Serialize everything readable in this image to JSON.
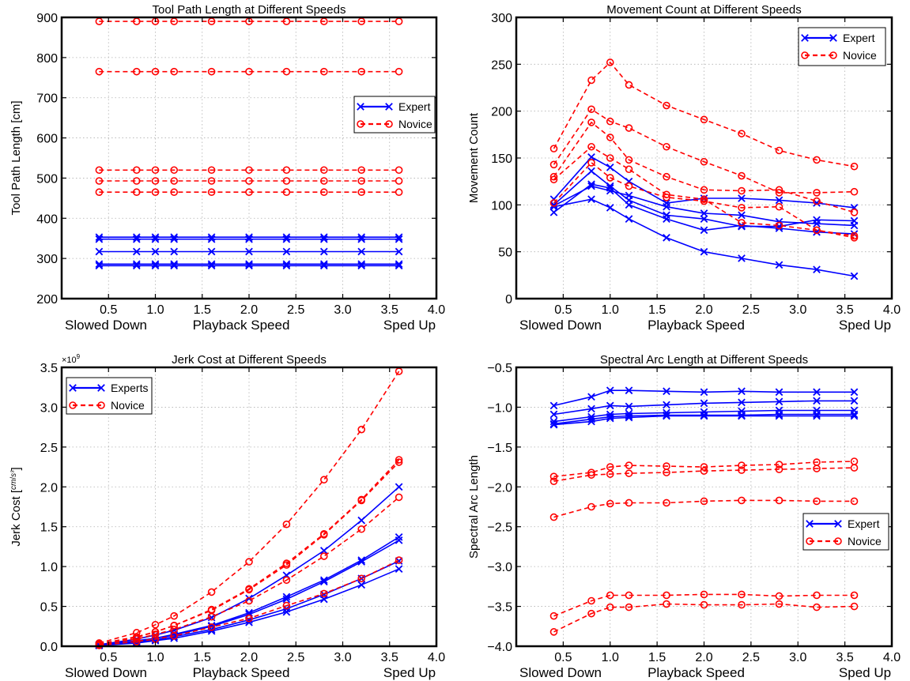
{
  "colors": {
    "expert": "#0000ff",
    "novice": "#ff0000",
    "grid": "#b0b0b0",
    "axis": "#000000",
    "background": "#ffffff"
  },
  "chart_data": [
    {
      "type": "line",
      "title": "Tool Path Length at Different Speeds",
      "xlabel": "Playback Speed",
      "x_left_label": "Slowed Down",
      "x_right_label": "Sped Up",
      "ylabel": "Tool Path Length [cm]",
      "xlim": [
        0,
        4
      ],
      "ylim": [
        200,
        900
      ],
      "xticks": [
        0.5,
        1.0,
        1.5,
        2.0,
        2.5,
        3.0,
        3.5,
        4.0
      ],
      "xtick_labels": [
        "0.5",
        "1.0",
        "1.5",
        "2.0",
        "2.5",
        "3.0",
        "3.5",
        "4.0"
      ],
      "yticks": [
        200,
        300,
        400,
        500,
        600,
        700,
        800,
        900
      ],
      "ytick_labels": [
        "200",
        "300",
        "400",
        "500",
        "600",
        "700",
        "800",
        "900"
      ],
      "grid": true,
      "legend_position": "center-right",
      "legend": [
        {
          "label": "Expert",
          "group": "expert"
        },
        {
          "label": "Novice",
          "group": "novice"
        }
      ],
      "x": [
        0.4,
        0.8,
        1.0,
        1.2,
        1.6,
        2.0,
        2.4,
        2.8,
        3.2,
        3.6
      ],
      "series": [
        {
          "group": "expert",
          "values": [
            353,
            353,
            353,
            353,
            353,
            353,
            353,
            353,
            353,
            353
          ]
        },
        {
          "group": "expert",
          "values": [
            348,
            348,
            348,
            348,
            348,
            348,
            348,
            348,
            348,
            348
          ]
        },
        {
          "group": "expert",
          "values": [
            317,
            317,
            317,
            317,
            317,
            317,
            317,
            317,
            317,
            317
          ]
        },
        {
          "group": "expert",
          "values": [
            286,
            286,
            286,
            286,
            286,
            286,
            286,
            286,
            286,
            286
          ]
        },
        {
          "group": "expert",
          "values": [
            282,
            282,
            282,
            282,
            282,
            282,
            282,
            282,
            282,
            282
          ]
        },
        {
          "group": "novice",
          "values": [
            890,
            890,
            890,
            890,
            890,
            890,
            890,
            890,
            890,
            890
          ]
        },
        {
          "group": "novice",
          "values": [
            765,
            765,
            765,
            765,
            765,
            765,
            765,
            765,
            765,
            765
          ]
        },
        {
          "group": "novice",
          "values": [
            520,
            520,
            520,
            520,
            520,
            520,
            520,
            520,
            520,
            520
          ]
        },
        {
          "group": "novice",
          "values": [
            493,
            493,
            493,
            493,
            493,
            493,
            493,
            493,
            493,
            493
          ]
        },
        {
          "group": "novice",
          "values": [
            465,
            465,
            465,
            465,
            465,
            465,
            465,
            465,
            465,
            465
          ]
        }
      ]
    },
    {
      "type": "line",
      "title": "Movement Count at Different Speeds",
      "xlabel": "Playback Speed",
      "x_left_label": "Slowed Down",
      "x_right_label": "Sped Up",
      "ylabel": "Movement Count",
      "xlim": [
        0,
        4
      ],
      "ylim": [
        0,
        300
      ],
      "xticks": [
        0.5,
        1.0,
        1.5,
        2.0,
        2.5,
        3.0,
        3.5,
        4.0
      ],
      "xtick_labels": [
        "0.5",
        "1.0",
        "1.5",
        "2.0",
        "2.5",
        "3.0",
        "3.5",
        "4.0"
      ],
      "yticks": [
        0,
        50,
        100,
        150,
        200,
        250,
        300
      ],
      "ytick_labels": [
        "0",
        "50",
        "100",
        "150",
        "200",
        "250",
        "300"
      ],
      "grid": true,
      "legend_position": "top-right",
      "legend": [
        {
          "label": "Expert",
          "group": "expert"
        },
        {
          "label": "Novice",
          "group": "novice"
        }
      ],
      "x": [
        0.4,
        0.8,
        1.0,
        1.2,
        1.6,
        2.0,
        2.4,
        2.8,
        3.2,
        3.6
      ],
      "series": [
        {
          "group": "expert",
          "values": [
            106,
            151,
            140,
            125,
            102,
            107,
            107,
            105,
            102,
            97
          ]
        },
        {
          "group": "expert",
          "values": [
            100,
            136,
            120,
            105,
            89,
            85,
            77,
            77,
            84,
            83
          ]
        },
        {
          "group": "expert",
          "values": [
            92,
            122,
            118,
            100,
            85,
            73,
            78,
            75,
            71,
            69
          ]
        },
        {
          "group": "expert",
          "values": [
            98,
            106,
            97,
            85,
            65,
            50,
            43,
            36,
            31,
            24
          ]
        },
        {
          "group": "expert",
          "values": [
            99,
            120,
            115,
            110,
            98,
            91,
            89,
            82,
            80,
            78
          ]
        },
        {
          "group": "novice",
          "values": [
            160,
            233,
            252,
            228,
            206,
            191,
            176,
            158,
            148,
            141
          ]
        },
        {
          "group": "novice",
          "values": [
            143,
            202,
            189,
            182,
            162,
            146,
            131,
            113,
            113,
            114
          ]
        },
        {
          "group": "novice",
          "values": [
            130,
            188,
            172,
            148,
            130,
            116,
            115,
            116,
            104,
            92
          ]
        },
        {
          "group": "novice",
          "values": [
            127,
            162,
            150,
            138,
            111,
            106,
            81,
            78,
            73,
            67
          ]
        },
        {
          "group": "novice",
          "values": [
            102,
            145,
            129,
            120,
            108,
            104,
            97,
            98,
            73,
            65
          ]
        }
      ]
    },
    {
      "type": "line",
      "title": "Jerk Cost at Different Speeds",
      "xlabel": "Playback Speed",
      "x_left_label": "Slowed Down",
      "x_right_label": "Sped Up",
      "ylabel_text": "Jerk Cost [",
      "ylabel_fraction_num": "cm",
      "ylabel_fraction_den": "s³",
      "ylabel_close": "]",
      "y_multiplier": "×10",
      "y_multiplier_exp": "9",
      "xlim": [
        0,
        4
      ],
      "ylim": [
        0,
        3.5
      ],
      "xticks": [
        0.5,
        1.0,
        1.5,
        2.0,
        2.5,
        3.0,
        3.5,
        4.0
      ],
      "xtick_labels": [
        "0.5",
        "1.0",
        "1.5",
        "2.0",
        "2.5",
        "3.0",
        "3.5",
        "4.0"
      ],
      "yticks": [
        0,
        0.5,
        1.0,
        1.5,
        2.0,
        2.5,
        3.0,
        3.5
      ],
      "ytick_labels": [
        "0.0",
        "0.5",
        "1.0",
        "1.5",
        "2.0",
        "2.5",
        "3.0",
        "3.5"
      ],
      "grid": true,
      "legend_position": "top-left",
      "legend": [
        {
          "label": "Experts",
          "group": "expert"
        },
        {
          "label": "Novice",
          "group": "novice"
        }
      ],
      "x": [
        0.4,
        0.8,
        1.0,
        1.2,
        1.6,
        2.0,
        2.4,
        2.8,
        3.2,
        3.6
      ],
      "series": [
        {
          "group": "expert",
          "values": [
            0.02,
            0.09,
            0.14,
            0.2,
            0.36,
            0.6,
            0.89,
            1.2,
            1.58,
            2.0
          ]
        },
        {
          "group": "expert",
          "values": [
            0.01,
            0.07,
            0.1,
            0.15,
            0.26,
            0.42,
            0.62,
            0.83,
            1.08,
            1.37
          ]
        },
        {
          "group": "expert",
          "values": [
            0.01,
            0.06,
            0.1,
            0.14,
            0.25,
            0.4,
            0.59,
            0.81,
            1.06,
            1.33
          ]
        },
        {
          "group": "expert",
          "values": [
            0.01,
            0.05,
            0.08,
            0.12,
            0.21,
            0.33,
            0.47,
            0.65,
            0.85,
            1.07
          ]
        },
        {
          "group": "expert",
          "values": [
            0.01,
            0.04,
            0.07,
            0.1,
            0.19,
            0.3,
            0.43,
            0.59,
            0.77,
            0.97
          ]
        },
        {
          "group": "novice",
          "values": [
            0.04,
            0.17,
            0.27,
            0.38,
            0.68,
            1.06,
            1.53,
            2.09,
            2.72,
            3.45
          ]
        },
        {
          "group": "novice",
          "values": [
            0.03,
            0.12,
            0.18,
            0.26,
            0.46,
            0.72,
            1.04,
            1.41,
            1.84,
            2.34
          ]
        },
        {
          "group": "novice",
          "values": [
            0.03,
            0.11,
            0.18,
            0.26,
            0.45,
            0.71,
            1.02,
            1.4,
            1.83,
            2.31
          ]
        },
        {
          "group": "novice",
          "values": [
            0.02,
            0.09,
            0.15,
            0.21,
            0.37,
            0.57,
            0.83,
            1.13,
            1.47,
            1.87
          ]
        },
        {
          "group": "novice",
          "values": [
            0.01,
            0.06,
            0.09,
            0.13,
            0.24,
            0.35,
            0.51,
            0.66,
            0.85,
            1.08
          ]
        }
      ]
    },
    {
      "type": "line",
      "title": "Spectral Arc Length at Different Speeds",
      "xlabel": "Playback Speed",
      "x_left_label": "Slowed Down",
      "x_right_label": "Sped Up",
      "ylabel": "Spectral Arc Length",
      "xlim": [
        0,
        4
      ],
      "ylim": [
        -4.0,
        -0.5
      ],
      "xticks": [
        0.5,
        1.0,
        1.5,
        2.0,
        2.5,
        3.0,
        3.5,
        4.0
      ],
      "xtick_labels": [
        "0.5",
        "1.0",
        "1.5",
        "2.0",
        "2.5",
        "3.0",
        "3.5",
        "4.0"
      ],
      "yticks": [
        -4.0,
        -3.5,
        -3.0,
        -2.5,
        -2.0,
        -1.5,
        -1.0,
        -0.5
      ],
      "ytick_labels": [
        "−4.0",
        "−3.5",
        "−3.0",
        "−2.5",
        "−2.0",
        "−1.5",
        "−1.0",
        "−0.5"
      ],
      "grid": true,
      "legend_position": "center-right",
      "legend": [
        {
          "label": "Expert",
          "group": "expert"
        },
        {
          "label": "Novice",
          "group": "novice"
        }
      ],
      "x": [
        0.4,
        0.8,
        1.0,
        1.2,
        1.6,
        2.0,
        2.4,
        2.8,
        3.2,
        3.6
      ],
      "series": [
        {
          "group": "expert",
          "values": [
            -0.98,
            -0.87,
            -0.79,
            -0.79,
            -0.8,
            -0.81,
            -0.8,
            -0.81,
            -0.81,
            -0.81
          ]
        },
        {
          "group": "expert",
          "values": [
            -1.09,
            -1.02,
            -0.98,
            -0.99,
            -0.97,
            -0.95,
            -0.94,
            -0.93,
            -0.92,
            -0.92
          ]
        },
        {
          "group": "expert",
          "values": [
            -1.18,
            -1.12,
            -1.09,
            -1.08,
            -1.07,
            -1.06,
            -1.05,
            -1.04,
            -1.04,
            -1.04
          ]
        },
        {
          "group": "expert",
          "values": [
            -1.21,
            -1.15,
            -1.12,
            -1.11,
            -1.1,
            -1.1,
            -1.1,
            -1.09,
            -1.09,
            -1.09
          ]
        },
        {
          "group": "expert",
          "values": [
            -1.22,
            -1.18,
            -1.14,
            -1.13,
            -1.11,
            -1.11,
            -1.11,
            -1.11,
            -1.11,
            -1.11
          ]
        },
        {
          "group": "novice",
          "values": [
            -1.87,
            -1.82,
            -1.75,
            -1.73,
            -1.74,
            -1.75,
            -1.73,
            -1.72,
            -1.69,
            -1.68
          ]
        },
        {
          "group": "novice",
          "values": [
            -1.93,
            -1.85,
            -1.84,
            -1.83,
            -1.82,
            -1.8,
            -1.79,
            -1.78,
            -1.77,
            -1.76
          ]
        },
        {
          "group": "novice",
          "values": [
            -2.38,
            -2.25,
            -2.21,
            -2.2,
            -2.2,
            -2.18,
            -2.17,
            -2.17,
            -2.18,
            -2.18
          ]
        },
        {
          "group": "novice",
          "values": [
            -3.62,
            -3.43,
            -3.36,
            -3.36,
            -3.36,
            -3.35,
            -3.35,
            -3.37,
            -3.36,
            -3.36
          ]
        },
        {
          "group": "novice",
          "values": [
            -3.82,
            -3.59,
            -3.51,
            -3.51,
            -3.47,
            -3.48,
            -3.48,
            -3.47,
            -3.51,
            -3.5
          ]
        }
      ]
    }
  ]
}
